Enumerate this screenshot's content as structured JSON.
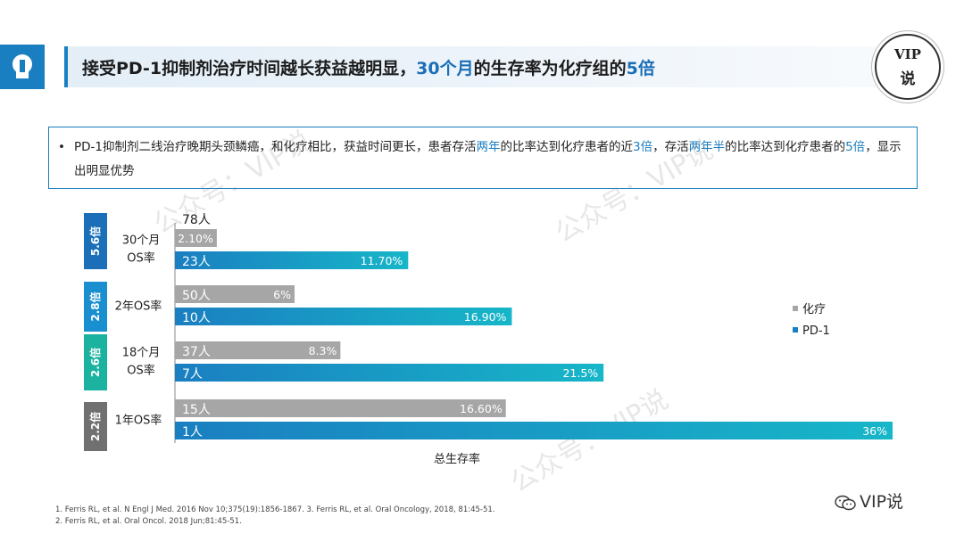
{
  "header": {
    "title_part1": "接受PD-1抑制剂治疗时间越长获益越明显，",
    "title_part2": "30个月",
    "title_part3": "的生存率为化疗组的",
    "title_part4": "5倍",
    "badge_line1": "VIP",
    "badge_line2": "说"
  },
  "description": {
    "bullet": "•",
    "segments": [
      {
        "text": "PD-1抑制剂二线治疗晚期头颈鳞癌，和化疗相比，获益时间更长，患者存活",
        "hl": false
      },
      {
        "text": "两年",
        "hl": true
      },
      {
        "text": "的比率达到化疗患者的近",
        "hl": false
      },
      {
        "text": "3倍",
        "hl": true
      },
      {
        "text": "，存活",
        "hl": false
      },
      {
        "text": "两年半",
        "hl": true
      },
      {
        "text": "的比率达到化疗患者的",
        "hl": false
      },
      {
        "text": "5倍",
        "hl": true
      },
      {
        "text": "，显示出明显优势",
        "hl": false
      }
    ]
  },
  "colors": {
    "chemo": "#a6a6a6",
    "pd1": "#1a7fc1",
    "pd1_end": "#17b6c8",
    "group_badges": [
      "#1a6fb8",
      "#1a8fd0",
      "#1bb3a0",
      "#707070"
    ]
  },
  "chart_data": {
    "type": "bar",
    "orientation": "horizontal",
    "xlabel": "总生存率",
    "legend": [
      "化疗",
      "PD-1"
    ],
    "legend_position": "right",
    "xlim": [
      0,
      36
    ],
    "groups": [
      {
        "badge": "5.6倍",
        "label": [
          "30个月",
          "OS率"
        ],
        "top_count": "78人",
        "chemo": {
          "value": 2.1,
          "label": "2.10%",
          "count": ""
        },
        "pd1": {
          "value": 11.7,
          "label": "11.70%",
          "count": "23人"
        }
      },
      {
        "badge": "2.8倍",
        "label": [
          "2年OS率"
        ],
        "top_count": "",
        "chemo": {
          "value": 6,
          "label": "6%",
          "count": "50人"
        },
        "pd1": {
          "value": 16.9,
          "label": "16.90%",
          "count": "10人"
        }
      },
      {
        "badge": "2.6倍",
        "label": [
          "18个月",
          "OS率"
        ],
        "top_count": "",
        "chemo": {
          "value": 8.3,
          "label": "8.3%",
          "count": "37人"
        },
        "pd1": {
          "value": 21.5,
          "label": "21.5%",
          "count": "7人"
        }
      },
      {
        "badge": "2.2倍",
        "label": [
          "1年OS率"
        ],
        "top_count": "",
        "chemo": {
          "value": 16.6,
          "label": "16.60%",
          "count": "15人"
        },
        "pd1": {
          "value": 36,
          "label": "36%",
          "count": "1人"
        }
      }
    ]
  },
  "watermarks": [
    "公众号：VIP说",
    "公众号：VIP说",
    "公众号：VIP说"
  ],
  "references": [
    "1. Ferris RL, et al. N Engl J Med. 2016 Nov 10;375(19):1856-1867.",
    "3. Ferris RL, et al. Oral Oncology, 2018, 81:45-51.",
    "2. Ferris RL, et al. Oral Oncol. 2018 Jun;81:45-51."
  ],
  "footer": {
    "wechat": "VIP说"
  }
}
